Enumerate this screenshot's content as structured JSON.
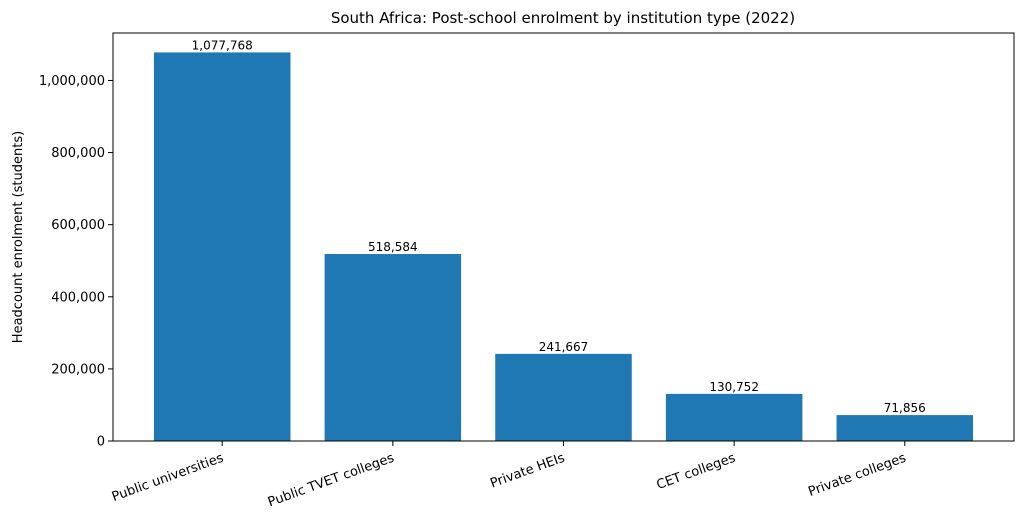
{
  "chart_data": {
    "type": "bar",
    "title": "South Africa: Post-school enrolment by institution type (2022)",
    "xlabel": "",
    "ylabel": "Headcount enrolment (students)",
    "categories": [
      "Public universities",
      "Public TVET colleges",
      "Private HEIs",
      "CET colleges",
      "Private colleges"
    ],
    "values": [
      1077768,
      518584,
      241667,
      130752,
      71856
    ],
    "value_labels": [
      "1,077,768",
      "518,584",
      "241,667",
      "130,752",
      "71,856"
    ],
    "ylim": [
      0,
      1131656
    ],
    "yticks": [
      0,
      200000,
      400000,
      600000,
      800000,
      1000000
    ],
    "ytick_labels": [
      "0",
      "200,000",
      "400,000",
      "600,000",
      "800,000",
      "1,000,000"
    ],
    "bar_color": "#1f77b4",
    "grid": false,
    "legend": "none"
  }
}
